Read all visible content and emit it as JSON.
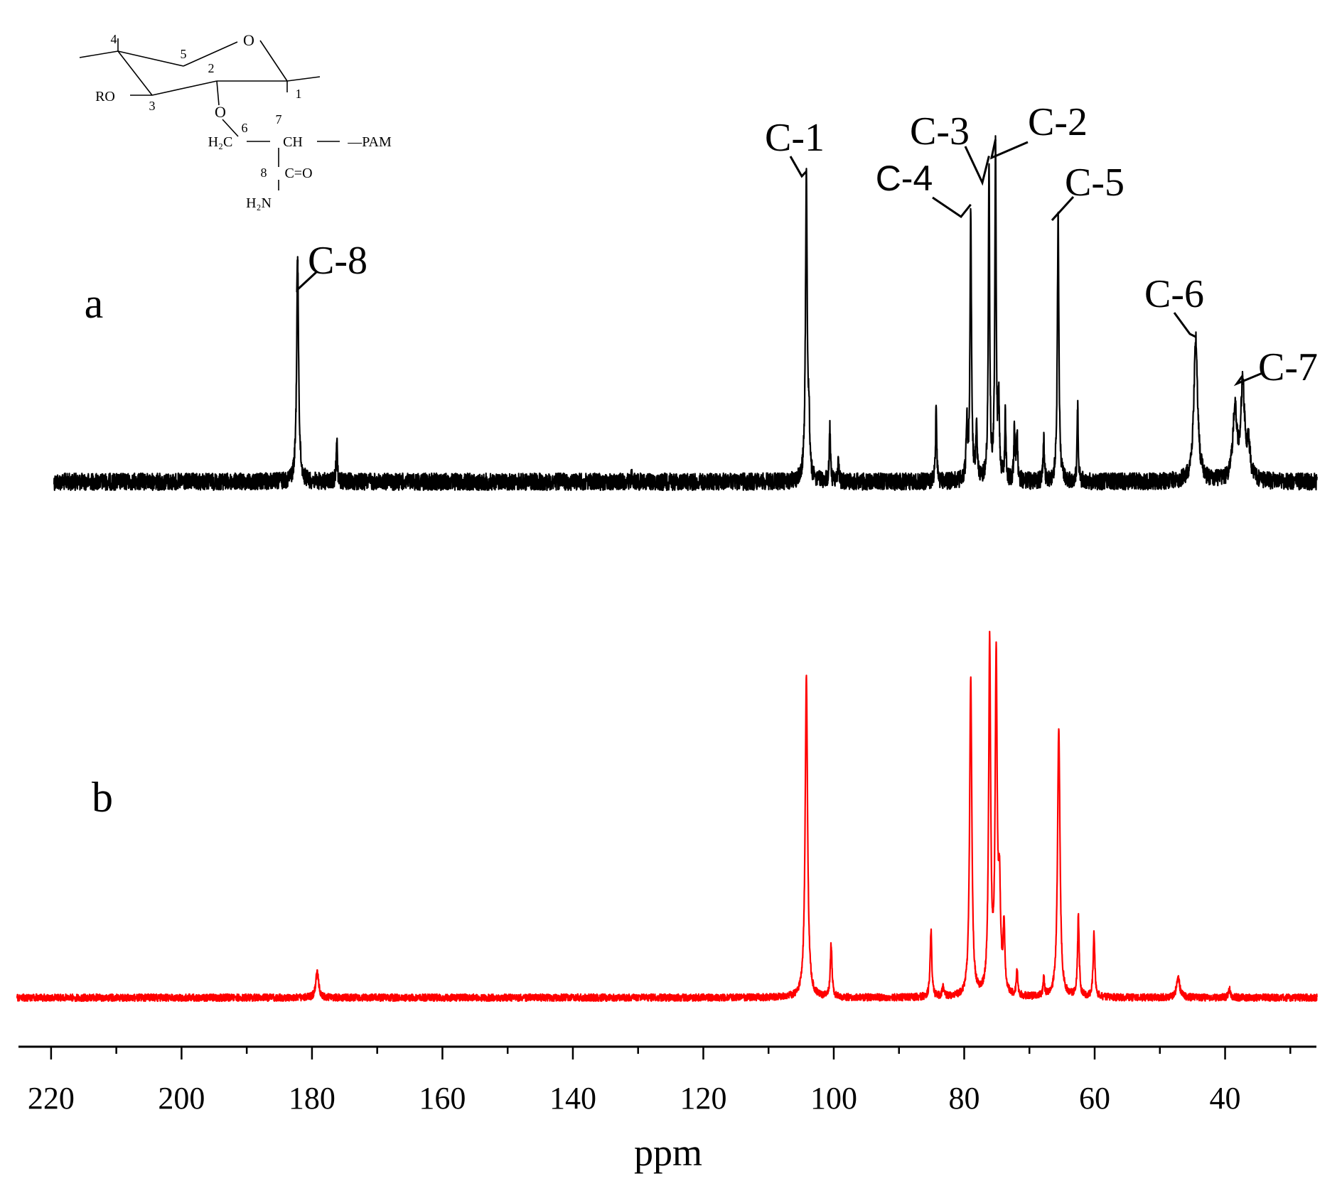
{
  "chart_data": {
    "type": "line",
    "xlabel": "ppm",
    "xlim": [
      225,
      26
    ],
    "xticks": [
      220,
      200,
      180,
      160,
      140,
      120,
      100,
      80,
      60,
      40
    ],
    "series": [
      {
        "id": "a",
        "panel_label": "a",
        "color": "#000000",
        "noise_intensity": 0.03,
        "peaks": [
          {
            "x": 182.2,
            "h": 0.722,
            "w": 0.18
          },
          {
            "x": 176.2,
            "h": 0.152,
            "w": 0.1
          },
          {
            "x": 131.0,
            "h": 0.02,
            "w": 0.1
          },
          {
            "x": 104.2,
            "h": 1.0,
            "w": 0.16
          },
          {
            "x": 103.8,
            "h": 0.18,
            "w": 0.1
          },
          {
            "x": 100.6,
            "h": 0.18,
            "w": 0.1
          },
          {
            "x": 99.3,
            "h": 0.07,
            "w": 0.1
          },
          {
            "x": 84.3,
            "h": 0.253,
            "w": 0.1
          },
          {
            "x": 79.6,
            "h": 0.18,
            "w": 0.12
          },
          {
            "x": 79.0,
            "h": 0.889,
            "w": 0.13
          },
          {
            "x": 78.1,
            "h": 0.18,
            "w": 0.12
          },
          {
            "x": 76.2,
            "h": 1.041,
            "w": 0.12
          },
          {
            "x": 75.2,
            "h": 1.084,
            "w": 0.12
          },
          {
            "x": 74.7,
            "h": 0.24,
            "w": 0.12
          },
          {
            "x": 73.7,
            "h": 0.225,
            "w": 0.1
          },
          {
            "x": 72.3,
            "h": 0.18,
            "w": 0.1
          },
          {
            "x": 71.9,
            "h": 0.17,
            "w": 0.1
          },
          {
            "x": 67.8,
            "h": 0.14,
            "w": 0.1
          },
          {
            "x": 65.6,
            "h": 0.872,
            "w": 0.14
          },
          {
            "x": 62.6,
            "h": 0.253,
            "w": 0.1
          },
          {
            "x": 44.5,
            "h": 0.468,
            "w": 0.35
          },
          {
            "x": 38.5,
            "h": 0.232,
            "w": 0.35
          },
          {
            "x": 37.3,
            "h": 0.314,
            "w": 0.35
          },
          {
            "x": 36.4,
            "h": 0.1,
            "w": 0.3
          }
        ]
      },
      {
        "id": "b",
        "panel_label": "b",
        "color": "#ff0000",
        "noise_intensity": 0.012,
        "peaks": [
          {
            "x": 179.2,
            "h": 0.082,
            "w": 0.25
          },
          {
            "x": 104.2,
            "h": 1.0,
            "w": 0.22
          },
          {
            "x": 100.4,
            "h": 0.166,
            "w": 0.15
          },
          {
            "x": 85.1,
            "h": 0.21,
            "w": 0.15
          },
          {
            "x": 83.2,
            "h": 0.03,
            "w": 0.2
          },
          {
            "x": 79.0,
            "h": 1.0,
            "w": 0.2
          },
          {
            "x": 76.1,
            "h": 1.1,
            "w": 0.18
          },
          {
            "x": 75.1,
            "h": 1.03,
            "w": 0.18
          },
          {
            "x": 74.6,
            "h": 0.3,
            "w": 0.2
          },
          {
            "x": 73.9,
            "h": 0.21,
            "w": 0.15
          },
          {
            "x": 71.9,
            "h": 0.085,
            "w": 0.12
          },
          {
            "x": 67.8,
            "h": 0.06,
            "w": 0.12
          },
          {
            "x": 65.5,
            "h": 0.847,
            "w": 0.22
          },
          {
            "x": 62.5,
            "h": 0.25,
            "w": 0.15
          },
          {
            "x": 60.1,
            "h": 0.2,
            "w": 0.15
          },
          {
            "x": 47.2,
            "h": 0.06,
            "w": 0.3
          },
          {
            "x": 39.3,
            "h": 0.025,
            "w": 0.2
          }
        ]
      }
    ],
    "annotations": [
      {
        "text": "C-8",
        "peak_x": 182.2,
        "series": "a",
        "font": "serif"
      },
      {
        "text": "C-1",
        "peak_x": 104.2,
        "series": "a",
        "font": "serif"
      },
      {
        "text": "C-4",
        "peak_x": 79.0,
        "series": "a",
        "font": "sans"
      },
      {
        "text": "C-3",
        "peak_x": 76.2,
        "series": "a",
        "font": "serif"
      },
      {
        "text": "C-2",
        "peak_x": 75.2,
        "series": "a",
        "font": "serif"
      },
      {
        "text": "C-5",
        "peak_x": 65.6,
        "series": "a",
        "font": "serif"
      },
      {
        "text": "C-6",
        "peak_x": 44.5,
        "series": "a",
        "font": "serif"
      },
      {
        "text": "C-7",
        "peak_x": 37.3,
        "series": "a",
        "font": "serif"
      }
    ]
  },
  "structure": {
    "atom_labels": [
      "4",
      "5",
      "O",
      "2",
      "1",
      "RO",
      "3",
      "O",
      "6",
      "7",
      "H₂C",
      "CH",
      "—PAM",
      "8",
      "C=O",
      "H₂N"
    ]
  }
}
